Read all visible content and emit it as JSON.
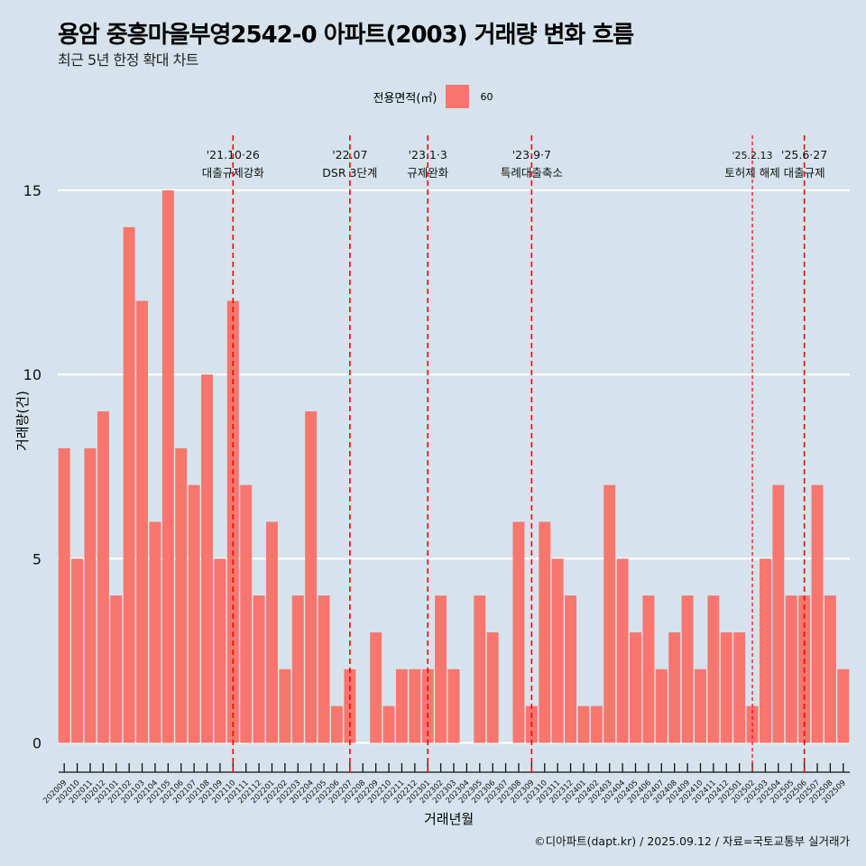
{
  "header": {
    "title": "용암 중흥마을부영2542-0 아파트(2003) 거래량 변화 흐름",
    "subtitle": "최근 5년 한정 확대 차트"
  },
  "legend": {
    "title": "전용면적(㎡)",
    "items": [
      {
        "label": "60",
        "color": "#F8766D"
      }
    ]
  },
  "caption": "©디아파트(dapt.kr) / 2025.09.12 / 자료=국토교통부 실거래가",
  "colors": {
    "background": "#d6e3ec",
    "bar": "#F8766D",
    "event_line": "#ff0000",
    "grid": "#ffffff"
  },
  "chart_data": {
    "type": "bar",
    "title": "용암 중흥마을부영2542-0 아파트(2003) 거래량 변화 흐름",
    "subtitle": "최근 5년 한정 확대 차트",
    "xlabel": "거래년월",
    "ylabel": "거래량(건)",
    "ylim": [
      0,
      16
    ],
    "yticks": [
      0,
      5,
      10,
      15
    ],
    "grid": "horizontal major",
    "legend_position": "top",
    "categories": [
      "202009",
      "202010",
      "202011",
      "202012",
      "202101",
      "202102",
      "202103",
      "202104",
      "202105",
      "202106",
      "202107",
      "202108",
      "202109",
      "202110",
      "202111",
      "202112",
      "202201",
      "202202",
      "202203",
      "202204",
      "202205",
      "202206",
      "202207",
      "202208",
      "202209",
      "202210",
      "202211",
      "202212",
      "202301",
      "202302",
      "202303",
      "202304",
      "202305",
      "202306",
      "202307",
      "202308",
      "202309",
      "202310",
      "202311",
      "202312",
      "202401",
      "202402",
      "202403",
      "202404",
      "202405",
      "202406",
      "202407",
      "202408",
      "202409",
      "202410",
      "202411",
      "202412",
      "202501",
      "202502",
      "202503",
      "202504",
      "202505",
      "202506",
      "202507",
      "202508",
      "202509"
    ],
    "series": [
      {
        "name": "60",
        "values": [
          8,
          5,
          8,
          9,
          4,
          14,
          12,
          6,
          15,
          8,
          7,
          10,
          5,
          12,
          7,
          4,
          6,
          2,
          4,
          9,
          4,
          1,
          2,
          0,
          3,
          1,
          2,
          2,
          2,
          4,
          2,
          0,
          4,
          3,
          0,
          6,
          1,
          6,
          5,
          4,
          1,
          1,
          7,
          5,
          3,
          4,
          2,
          3,
          4,
          2,
          4,
          3,
          3,
          1,
          5,
          7,
          4,
          4,
          7,
          4,
          2
        ]
      }
    ],
    "events": [
      {
        "month": "202110",
        "date": "'21.10·26",
        "label": "대출규제강화",
        "style": "dashed"
      },
      {
        "month": "202207",
        "date": "'22.07",
        "label": "DSR 3단계",
        "style": "dashed"
      },
      {
        "month": "202301",
        "date": "'23.1·3",
        "label": "규제완화",
        "style": "dashed"
      },
      {
        "month": "202309",
        "date": "'23.9·7",
        "label": "특례대출축소",
        "style": "dashed"
      },
      {
        "month": "202502",
        "date": "'25.2.13",
        "label": "토허제 해제",
        "style": "dotted"
      },
      {
        "month": "202506",
        "date": "'25.6·27",
        "label": "대출규제",
        "style": "dashed"
      }
    ]
  }
}
